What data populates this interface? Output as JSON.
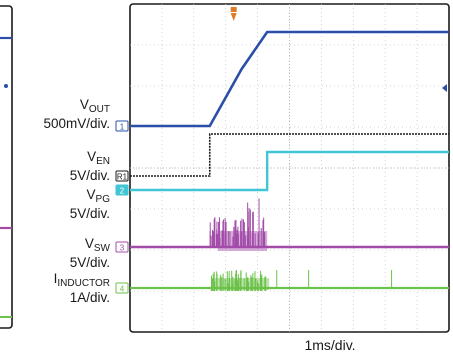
{
  "chart_data": {
    "type": "line",
    "title": "",
    "timebase": "1ms/div.",
    "x": {
      "unit": "ms",
      "range": [
        0,
        10
      ],
      "divisions": 10
    },
    "grid": true,
    "channels": [
      {
        "id": "1",
        "name": "V",
        "sub": "OUT",
        "scale": "500mV/div.",
        "color": "#2b4fa8"
      },
      {
        "id": "R1",
        "name": "V",
        "sub": "EN",
        "scale": "5V/div.",
        "color": "#1a1a1a"
      },
      {
        "id": "2",
        "name": "V",
        "sub": "PG",
        "scale": "5V/div.",
        "color": "#41c6d6"
      },
      {
        "id": "3",
        "name": "V",
        "sub": "SW",
        "scale": "5V/div.",
        "color": "#a24ca8"
      },
      {
        "id": "4",
        "name": "I",
        "sub": "INDUCTOR",
        "scale": "1A/div.",
        "color": "#6cc24a"
      }
    ],
    "series": [
      {
        "name": "VOUT",
        "x": [
          0,
          2.5,
          3.5,
          4.3,
          10
        ],
        "values": [
          0,
          0,
          2.0,
          3.3,
          3.3
        ]
      },
      {
        "name": "VEN",
        "x": [
          0,
          2.5,
          2.5,
          10
        ],
        "values": [
          0,
          0,
          5,
          5
        ]
      },
      {
        "name": "VPG",
        "x": [
          0,
          4.3,
          4.3,
          10
        ],
        "values": [
          0,
          0,
          5,
          5
        ]
      },
      {
        "name": "VSW",
        "switching_window_ms": [
          2.5,
          4.3
        ]
      },
      {
        "name": "IINDUCTOR",
        "switching_window_ms": [
          2.5,
          4.3
        ]
      }
    ]
  },
  "colors": {
    "grid": "#c8c8c8",
    "trigger": "#e07b28",
    "background": "#ffffff"
  }
}
